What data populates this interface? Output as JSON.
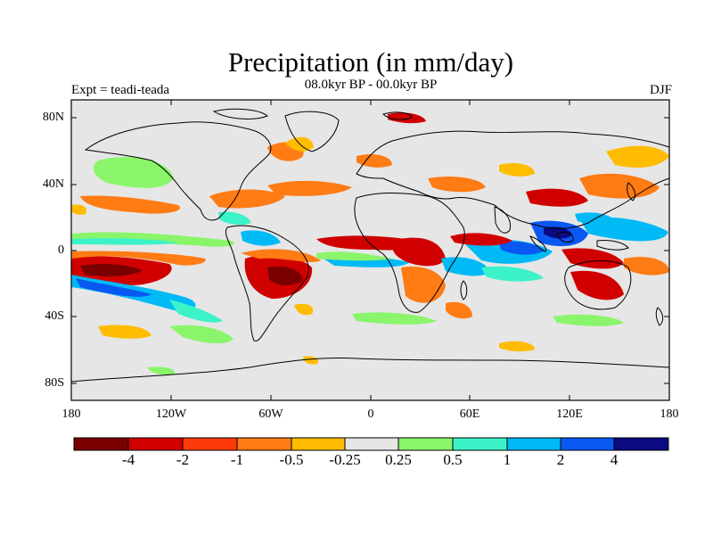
{
  "title": "Precipitation (in mm/day)",
  "subtitle": "08.0kyr BP - 00.0kyr BP",
  "left_label": "Expt = teadi-teada",
  "right_label": "DJF",
  "y_ticks": [
    "80N",
    "40N",
    "0",
    "40S",
    "80S"
  ],
  "x_ticks": [
    "180",
    "120W",
    "60W",
    "0",
    "60E",
    "120E",
    "180"
  ],
  "colorbar": {
    "colors": [
      "#7a0000",
      "#d10000",
      "#ff3a0a",
      "#ff7b14",
      "#ffbc00",
      "#e6e6e6",
      "#8af56a",
      "#3cf2c8",
      "#00baf6",
      "#0a58f2",
      "#0a0a82"
    ],
    "labels": [
      "-4",
      "-2",
      "-1",
      "-0.5",
      "-0.25",
      "0.25",
      "0.5",
      "1",
      "2",
      "4"
    ]
  },
  "map_colors": {
    "ocean": "#e6e6e6",
    "coast": "#000000"
  }
}
